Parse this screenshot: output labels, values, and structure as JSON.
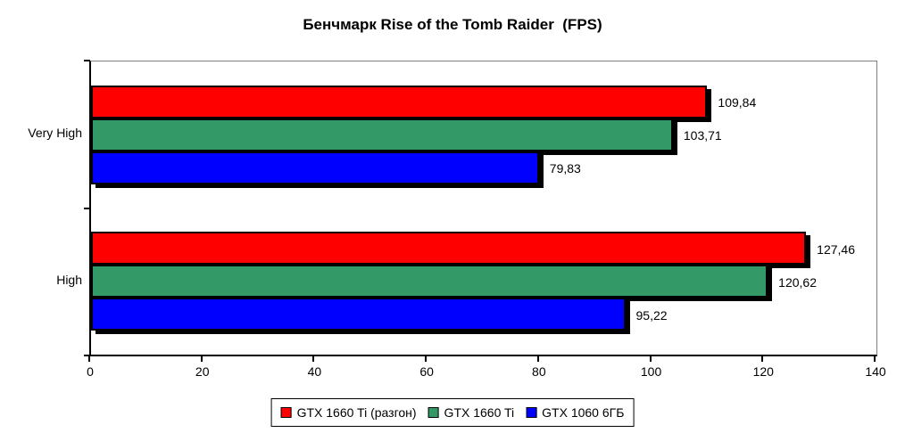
{
  "chart_data": {
    "type": "bar",
    "orientation": "horizontal",
    "title": "Бенчмарк Rise of the Tomb Raider  (FPS)",
    "categories": [
      "Very High",
      "High"
    ],
    "series": [
      {
        "name": "GTX 1660 Ti (разгон)",
        "color": "#ff0000",
        "values": [
          109.84,
          127.46
        ],
        "value_labels": [
          "109,84",
          "127,46"
        ]
      },
      {
        "name": "GTX 1660 Ti",
        "color": "#339966",
        "values": [
          103.71,
          120.62
        ],
        "value_labels": [
          "103,71",
          "120,62"
        ]
      },
      {
        "name": "GTX 1060 6ГБ",
        "color": "#0000ff",
        "values": [
          79.83,
          95.22
        ],
        "value_labels": [
          "79,83",
          "95,22"
        ]
      }
    ],
    "x_axis": {
      "min": 0,
      "max": 140,
      "tick_step": 20,
      "tick_labels": [
        "0",
        "20",
        "40",
        "60",
        "80",
        "100",
        "120",
        "140"
      ]
    },
    "y_axis_tick_count": 3,
    "legend_position": "bottom",
    "grid": false,
    "plot_border_color": "#808080",
    "axis_color": "#000000",
    "background_color": "#ffffff"
  }
}
